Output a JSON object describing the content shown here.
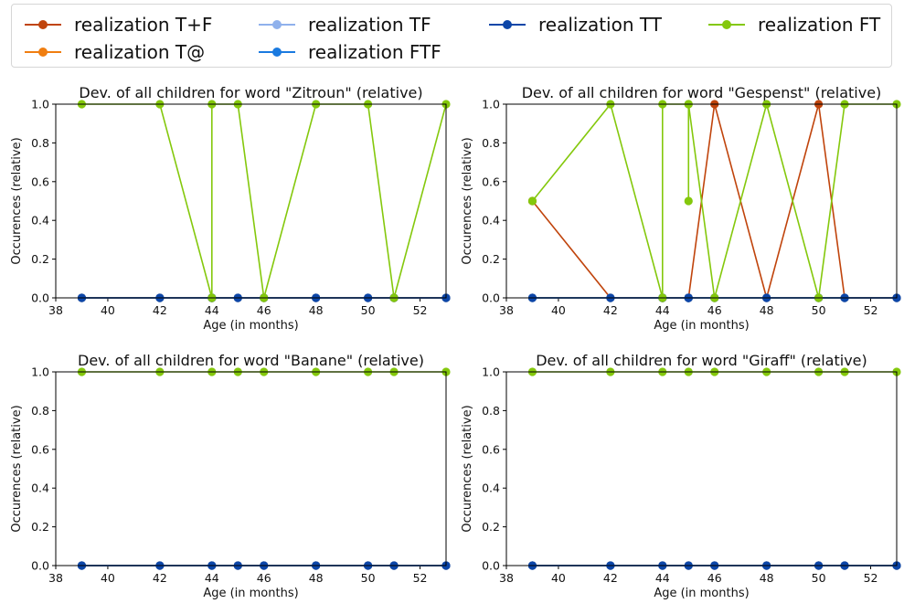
{
  "legend": {
    "placement": "top",
    "items": [
      {
        "label": "realization T+F",
        "color": "#c0440c"
      },
      {
        "label": "realization T@",
        "color": "#f07e10"
      },
      {
        "label": "realization TF",
        "color": "#8fb1ec"
      },
      {
        "label": "realization FTF",
        "color": "#1a7ae0"
      },
      {
        "label": "realization TT",
        "color": "#0c46a8"
      },
      {
        "label": "realization FT",
        "color": "#84c80c"
      }
    ]
  },
  "chart_data": [
    {
      "type": "line",
      "title": "Dev. of all children for word \"Zitroun\" (relative)",
      "xlabel": "Age (in months)",
      "ylabel": "Occurences (relative)",
      "xlim": [
        38,
        53
      ],
      "ylim": [
        0,
        1
      ],
      "xticks": [
        38,
        40,
        42,
        44,
        46,
        48,
        50,
        52
      ],
      "yticks": [
        "0.0",
        "0.2",
        "0.4",
        "0.6",
        "0.8",
        "1.0"
      ],
      "x": [
        39,
        42,
        44,
        44,
        45,
        46,
        48,
        50,
        51,
        53
      ],
      "series": [
        {
          "name": "realization T+F",
          "values": [
            0,
            0,
            0,
            0,
            0,
            0,
            0,
            0,
            0,
            0
          ]
        },
        {
          "name": "realization T@",
          "values": [
            0,
            0,
            0,
            0,
            0,
            0,
            0,
            0,
            0,
            0
          ]
        },
        {
          "name": "realization TF",
          "values": [
            0,
            0,
            0,
            0,
            0,
            0,
            0,
            0,
            0,
            0
          ]
        },
        {
          "name": "realization FTF",
          "values": [
            0,
            0,
            0,
            0,
            0,
            0,
            0,
            0,
            0,
            0
          ]
        },
        {
          "name": "realization TT",
          "values": [
            0,
            0,
            0,
            0,
            0,
            0,
            0,
            0,
            0,
            0
          ]
        },
        {
          "name": "realization FT",
          "values": [
            1,
            1,
            0,
            1,
            1,
            0,
            1,
            1,
            0,
            1
          ]
        }
      ]
    },
    {
      "type": "line",
      "title": "Dev. of all children for word \"Gespenst\" (relative)",
      "xlabel": "Age (in months)",
      "ylabel": "Occurences (relative)",
      "xlim": [
        38,
        53
      ],
      "ylim": [
        0,
        1
      ],
      "xticks": [
        38,
        40,
        42,
        44,
        46,
        48,
        50,
        52
      ],
      "yticks": [
        "0.0",
        "0.2",
        "0.4",
        "0.6",
        "0.8",
        "1.0"
      ],
      "x": [
        39,
        42,
        44,
        44,
        45,
        45,
        45,
        46,
        48,
        50,
        51,
        53
      ],
      "series": [
        {
          "name": "realization T+F",
          "values": [
            0.5,
            0,
            0,
            0,
            0,
            0,
            0,
            1,
            0,
            1,
            0,
            0
          ]
        },
        {
          "name": "realization T@",
          "values": [
            0,
            0,
            0,
            0,
            0,
            0,
            0,
            0,
            0,
            0,
            0,
            0
          ]
        },
        {
          "name": "realization TF",
          "values": [
            0,
            0,
            0,
            0,
            0,
            0,
            0,
            0,
            0,
            0,
            0,
            0
          ]
        },
        {
          "name": "realization FTF",
          "values": [
            0,
            0,
            0,
            0,
            0,
            0,
            0,
            0,
            0,
            0,
            0,
            0
          ]
        },
        {
          "name": "realization TT",
          "values": [
            0,
            0,
            0,
            0,
            0,
            0,
            0,
            0,
            0,
            0,
            0,
            0
          ]
        },
        {
          "name": "realization FT",
          "values": [
            0.5,
            1,
            0,
            1,
            1,
            0.5,
            1,
            0,
            1,
            0,
            1,
            1
          ]
        }
      ]
    },
    {
      "type": "line",
      "title": "Dev. of all children for word \"Banane\" (relative)",
      "xlabel": "Age (in months)",
      "ylabel": "Occurences (relative)",
      "xlim": [
        38,
        53
      ],
      "ylim": [
        0,
        1
      ],
      "xticks": [
        38,
        40,
        42,
        44,
        46,
        48,
        50,
        52
      ],
      "yticks": [
        "0.0",
        "0.2",
        "0.4",
        "0.6",
        "0.8",
        "1.0"
      ],
      "x": [
        39,
        42,
        44,
        45,
        46,
        48,
        50,
        51,
        53
      ],
      "series": [
        {
          "name": "realization T+F",
          "values": [
            0,
            0,
            0,
            0,
            0,
            0,
            0,
            0,
            0
          ]
        },
        {
          "name": "realization T@",
          "values": [
            0,
            0,
            0,
            0,
            0,
            0,
            0,
            0,
            0
          ]
        },
        {
          "name": "realization TF",
          "values": [
            0,
            0,
            0,
            0,
            0,
            0,
            0,
            0,
            0
          ]
        },
        {
          "name": "realization FTF",
          "values": [
            0,
            0,
            0,
            0,
            0,
            0,
            0,
            0,
            0
          ]
        },
        {
          "name": "realization TT",
          "values": [
            0,
            0,
            0,
            0,
            0,
            0,
            0,
            0,
            0
          ]
        },
        {
          "name": "realization FT",
          "values": [
            1,
            1,
            1,
            1,
            1,
            1,
            1,
            1,
            1
          ]
        }
      ]
    },
    {
      "type": "line",
      "title": "Dev. of all children for word \"Giraff\" (relative)",
      "xlabel": "Age (in months)",
      "ylabel": "Occurences (relative)",
      "xlim": [
        38,
        53
      ],
      "ylim": [
        0,
        1
      ],
      "xticks": [
        38,
        40,
        42,
        44,
        46,
        48,
        50,
        52
      ],
      "yticks": [
        "0.0",
        "0.2",
        "0.4",
        "0.6",
        "0.8",
        "1.0"
      ],
      "x": [
        39,
        42,
        44,
        45,
        46,
        48,
        50,
        51,
        53
      ],
      "series": [
        {
          "name": "realization T+F",
          "values": [
            0,
            0,
            0,
            0,
            0,
            0,
            0,
            0,
            0
          ]
        },
        {
          "name": "realization T@",
          "values": [
            0,
            0,
            0,
            0,
            0,
            0,
            0,
            0,
            0
          ]
        },
        {
          "name": "realization TF",
          "values": [
            0,
            0,
            0,
            0,
            0,
            0,
            0,
            0,
            0
          ]
        },
        {
          "name": "realization FTF",
          "values": [
            0,
            0,
            0,
            0,
            0,
            0,
            0,
            0,
            0
          ]
        },
        {
          "name": "realization TT",
          "values": [
            0,
            0,
            0,
            0,
            0,
            0,
            0,
            0,
            0
          ]
        },
        {
          "name": "realization FT",
          "values": [
            1,
            1,
            1,
            1,
            1,
            1,
            1,
            1,
            1
          ]
        }
      ]
    }
  ]
}
